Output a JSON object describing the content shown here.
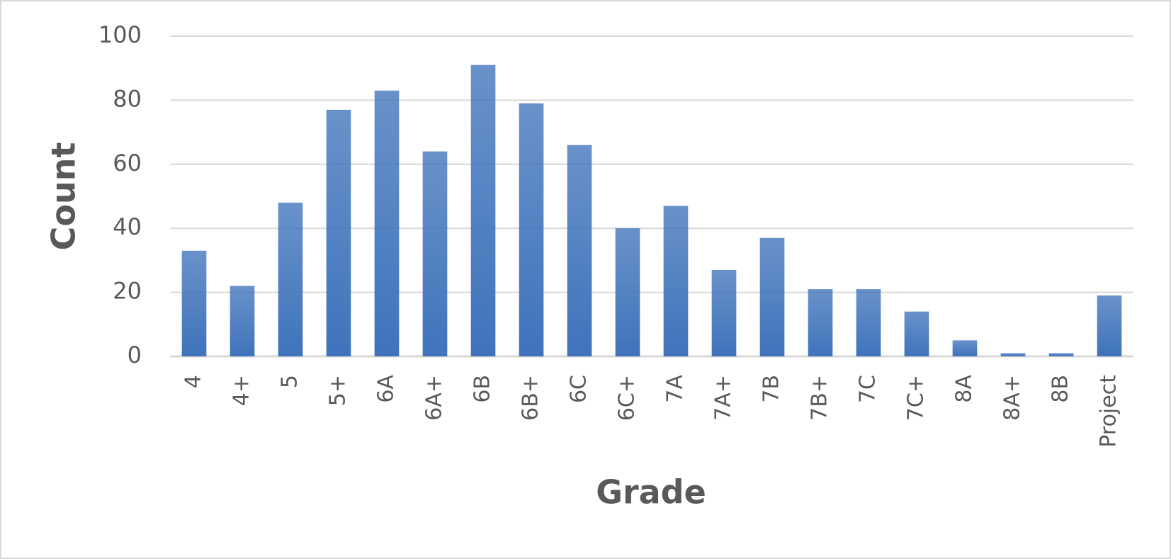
{
  "chart_data": {
    "type": "bar",
    "x_label": "Grade",
    "y_label": "Count",
    "categories": [
      "4",
      "4+",
      "5",
      "5+",
      "6A",
      "6A+",
      "6B",
      "6B+",
      "6C",
      "6C+",
      "7A",
      "7A+",
      "7B",
      "7B+",
      "7C",
      "7C+",
      "8A",
      "8A+",
      "8B",
      "Project"
    ],
    "values": [
      33,
      22,
      48,
      77,
      83,
      64,
      91,
      79,
      66,
      40,
      47,
      27,
      37,
      21,
      21,
      14,
      5,
      1,
      1,
      19
    ],
    "color": "#3f73bb",
    "ylim": [
      0,
      100
    ],
    "yticks": [
      0,
      20,
      40,
      60,
      80,
      100
    ],
    "grid": true
  }
}
